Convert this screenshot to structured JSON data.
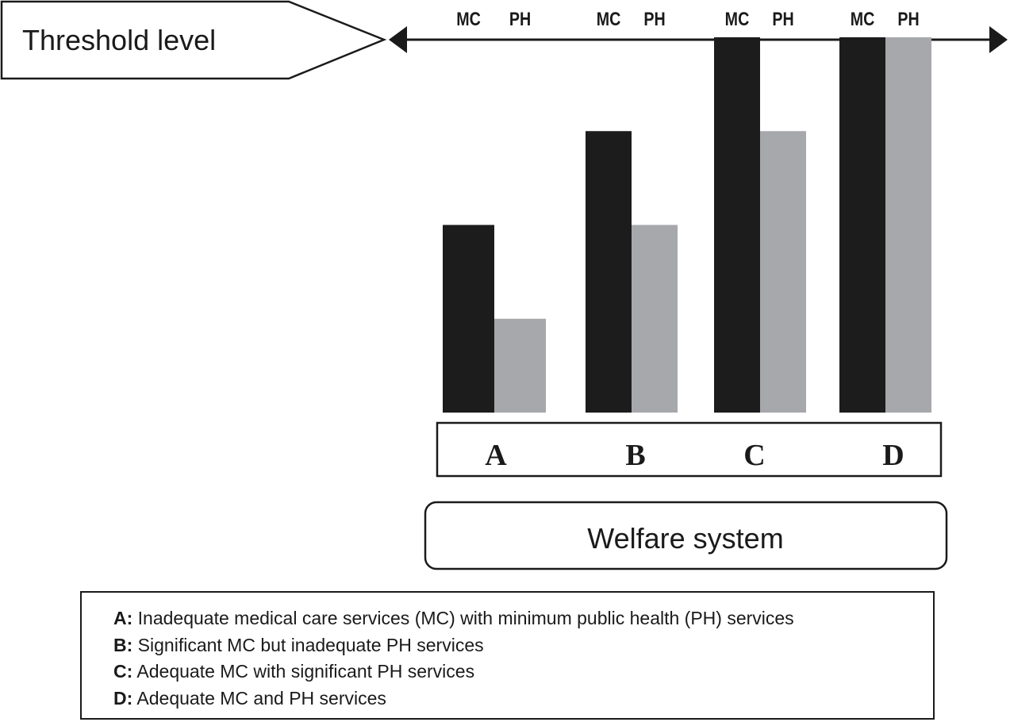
{
  "chart_data": {
    "type": "bar",
    "threshold_label": "Threshold level",
    "categories": [
      "A",
      "B",
      "C",
      "D"
    ],
    "series": [
      {
        "name": "MC",
        "values": [
          50,
          75,
          100,
          100
        ]
      },
      {
        "name": "PH",
        "values": [
          25,
          50,
          75,
          100
        ]
      }
    ],
    "ylim": [
      0,
      100
    ],
    "threshold_value": 100,
    "xlabel": "Welfare system",
    "colors": {
      "MC": "#1c1c1c",
      "PH": "#a7a8ab"
    }
  },
  "legend": [
    {
      "key": "A:",
      "text": " Inadequate medical care services (MC) with minimum public health (PH) services"
    },
    {
      "key": "B:",
      "text": " Significant MC but inadequate PH services"
    },
    {
      "key": "C:",
      "text": " Adequate MC with significant PH services"
    },
    {
      "key": "D:",
      "text": " Adequate MC and PH services"
    }
  ]
}
